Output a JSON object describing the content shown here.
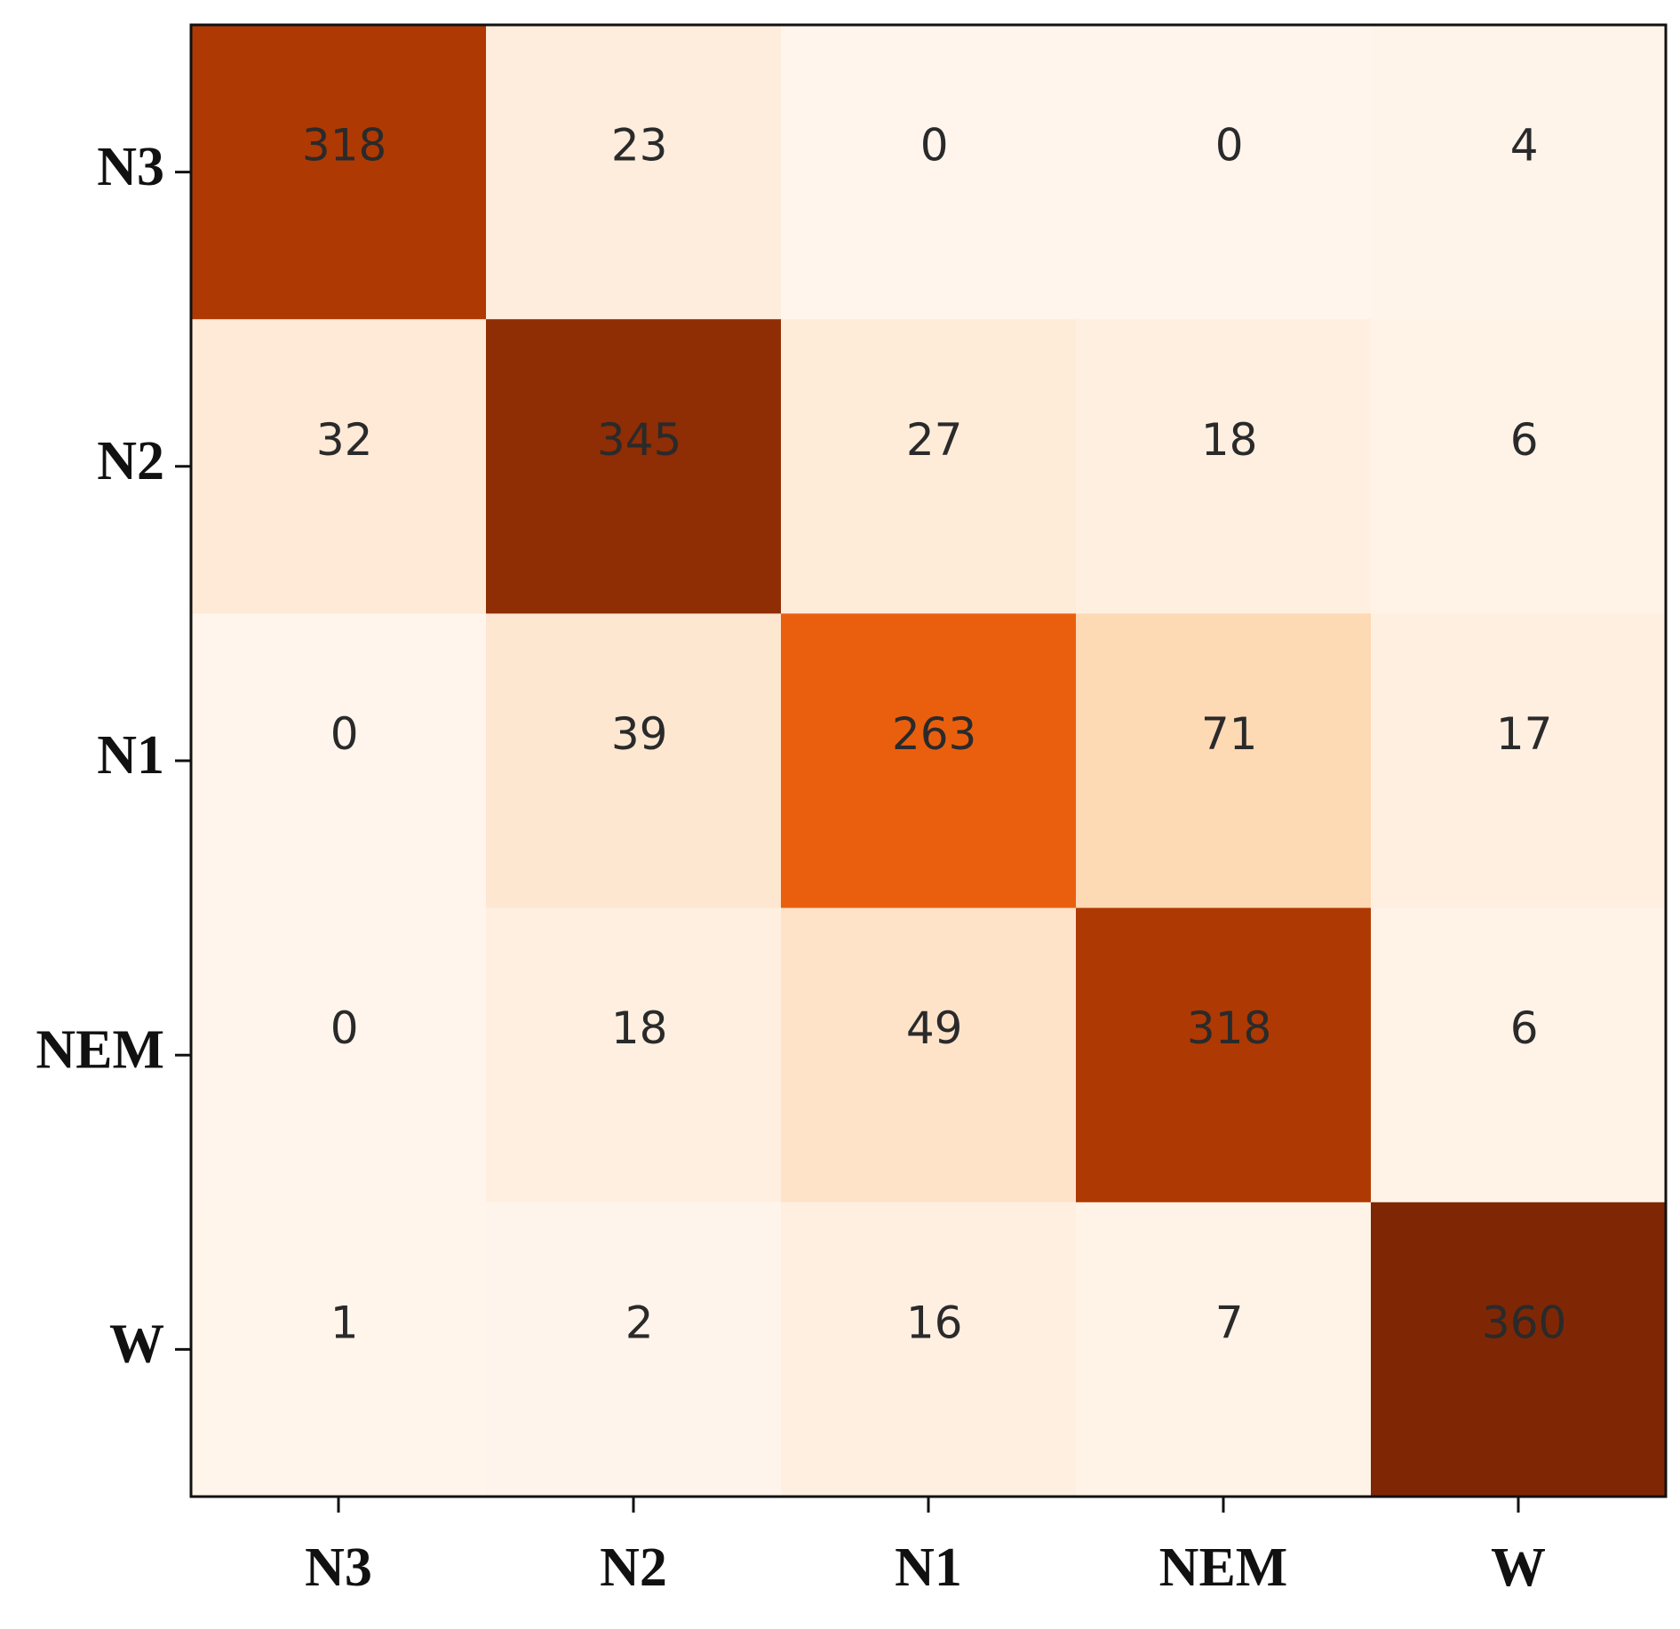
{
  "chart_data": {
    "type": "heatmap",
    "title": "",
    "xlabel": "",
    "ylabel": "",
    "x_categories": [
      "N3",
      "N2",
      "N1",
      "NEM",
      "W"
    ],
    "y_categories": [
      "N3",
      "N2",
      "N1",
      "NEM",
      "W"
    ],
    "values": [
      [
        318,
        23,
        0,
        0,
        4
      ],
      [
        32,
        345,
        27,
        18,
        6
      ],
      [
        0,
        39,
        263,
        71,
        17
      ],
      [
        0,
        18,
        49,
        318,
        6
      ],
      [
        1,
        2,
        16,
        7,
        360
      ]
    ],
    "colormap": {
      "low": "#fff4ec",
      "high": "#7f2704",
      "name": "Oranges"
    },
    "grid": false,
    "legend": "none"
  }
}
